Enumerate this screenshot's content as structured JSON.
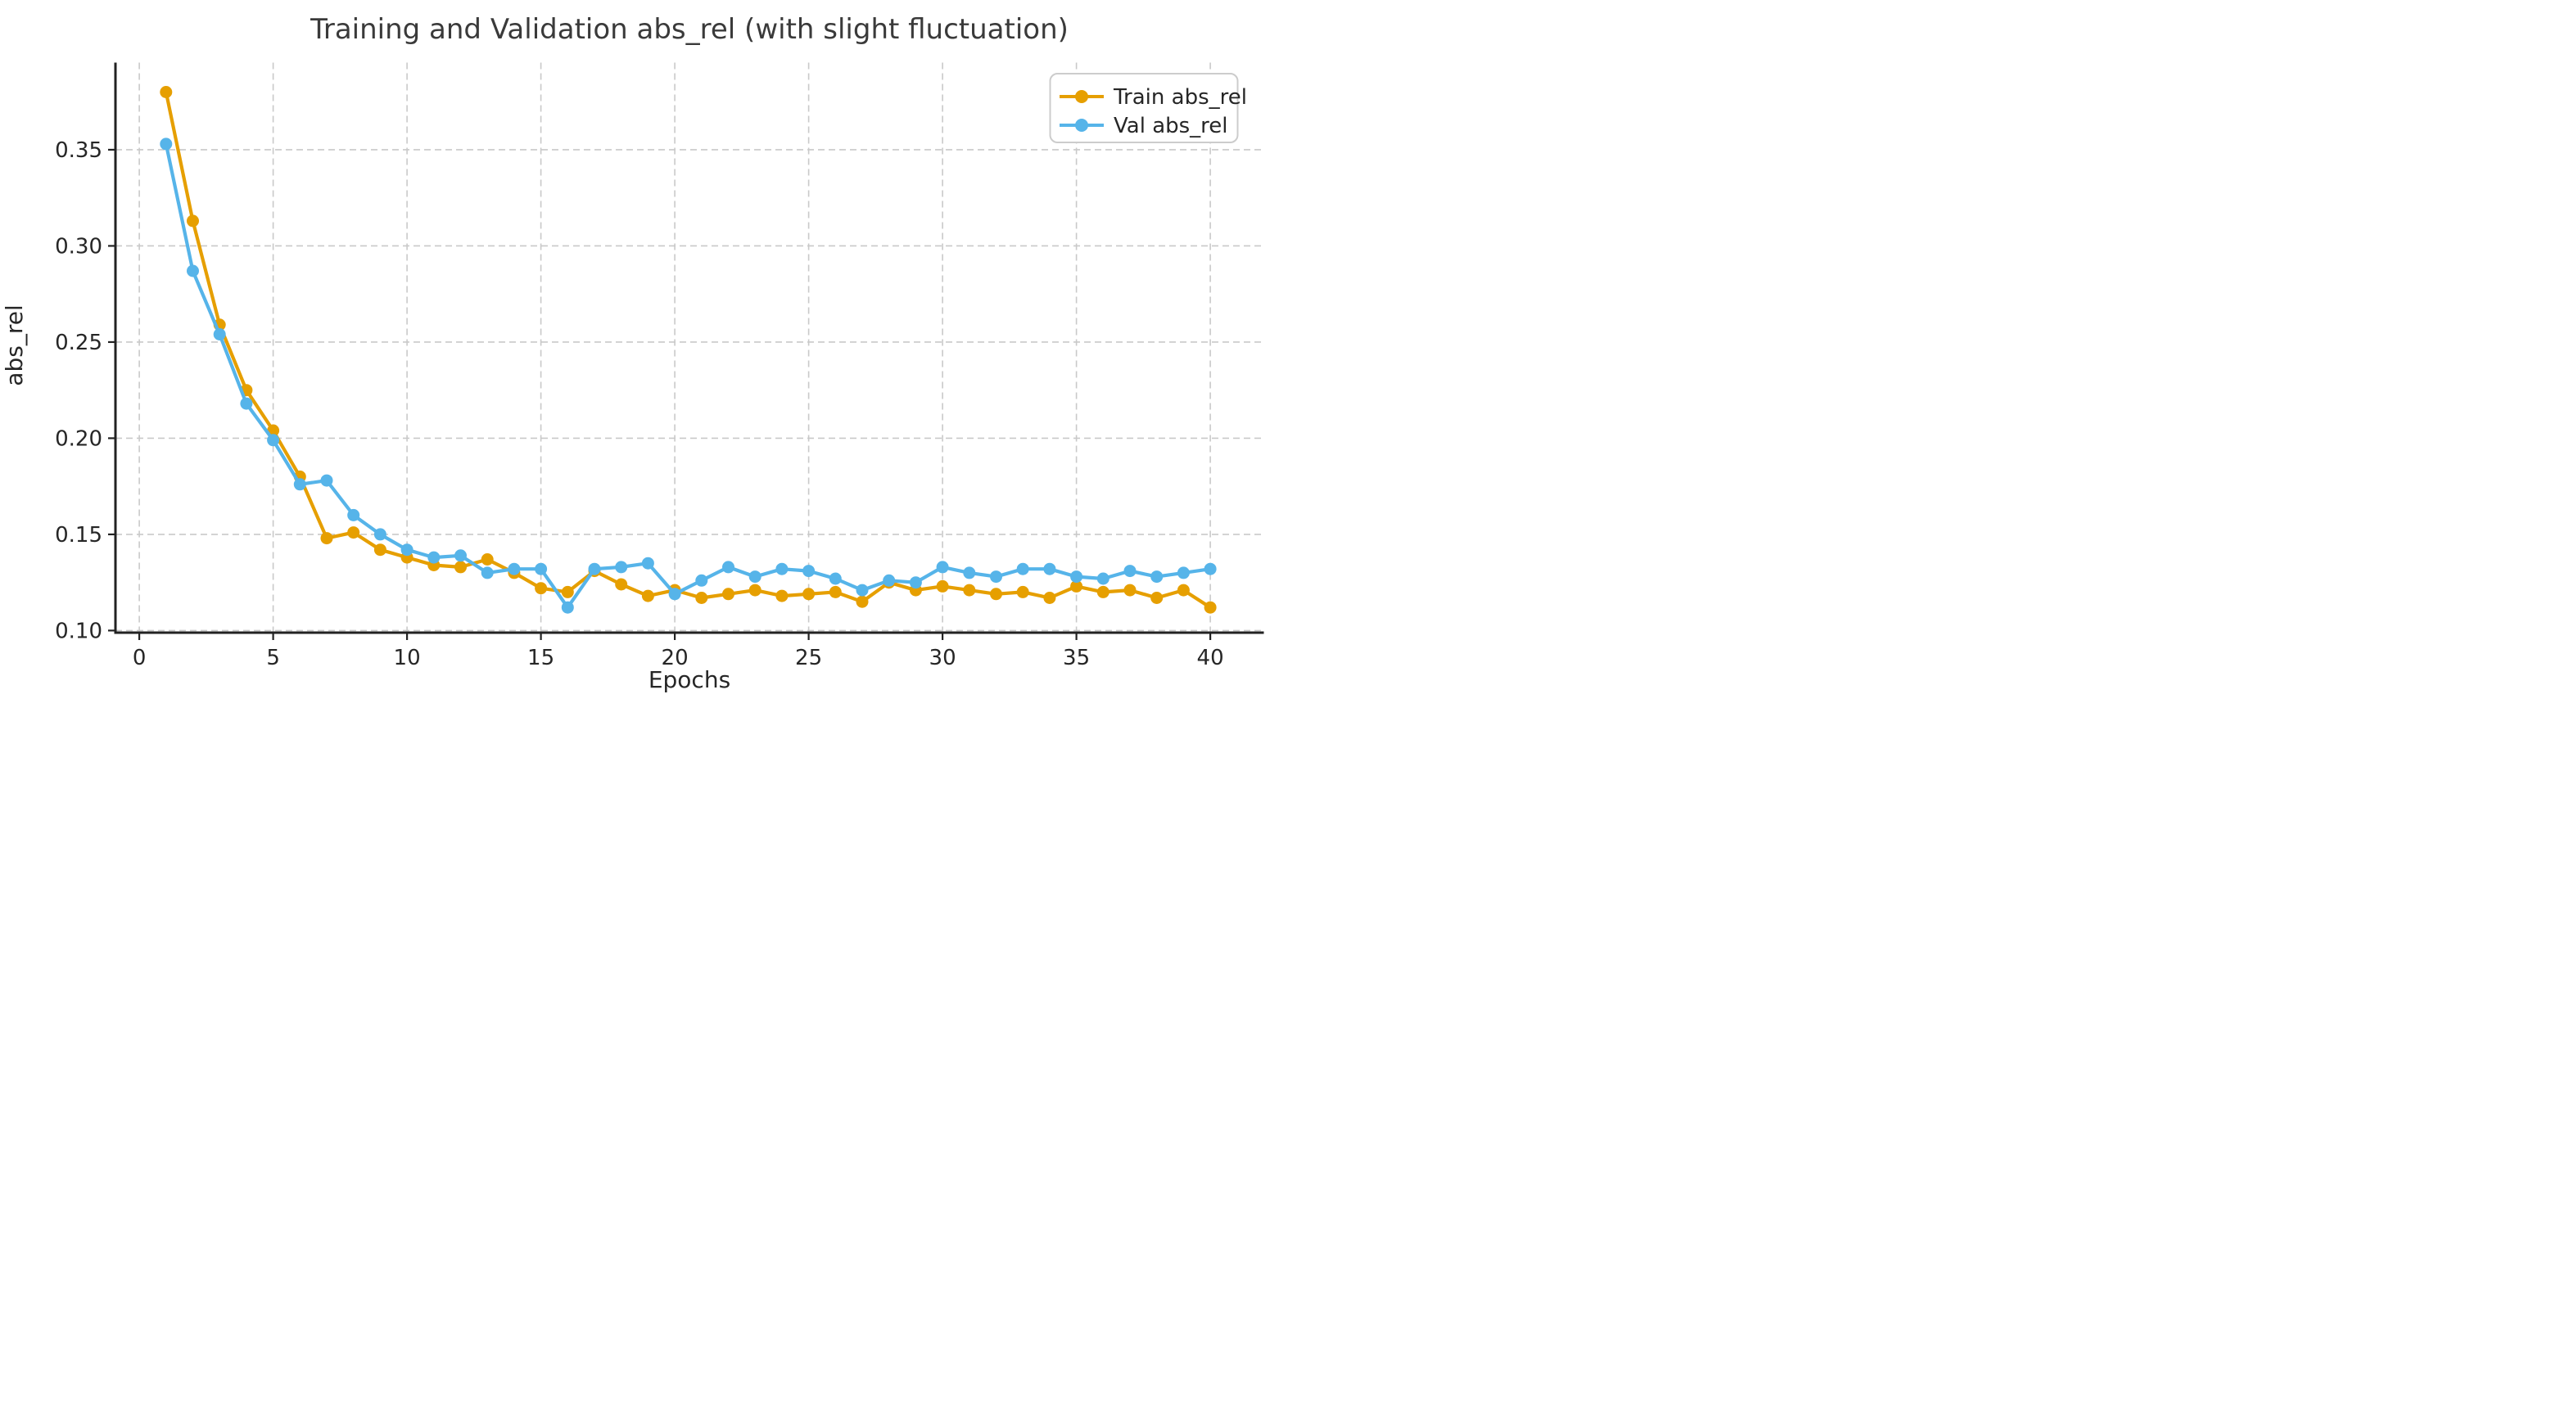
{
  "figure": {
    "background": "#ffffff"
  },
  "style": {
    "spine_color": "#222222",
    "tick_color": "#222222",
    "text_color": "#262626",
    "title_color": "#3a3a3a",
    "grid_color": "#c9c9c9",
    "legend_border_color": "#cccccc",
    "legend_background": "#ffffff"
  },
  "chart_data": {
    "type": "line",
    "title": "Training and Validation abs_rel (with slight fluctuation)",
    "xlabel": "Epochs",
    "ylabel": "abs_rel",
    "x": [
      1,
      2,
      3,
      4,
      5,
      6,
      7,
      8,
      9,
      10,
      11,
      12,
      13,
      14,
      15,
      16,
      17,
      18,
      19,
      20,
      21,
      22,
      23,
      24,
      25,
      26,
      27,
      28,
      29,
      30,
      31,
      32,
      33,
      34,
      35,
      36,
      37,
      38,
      39,
      40
    ],
    "series": [
      {
        "name": "Train abs_rel",
        "color": "#E69F00",
        "values": [
          0.38,
          0.313,
          0.259,
          0.225,
          0.204,
          0.18,
          0.148,
          0.151,
          0.142,
          0.138,
          0.134,
          0.133,
          0.137,
          0.13,
          0.122,
          0.12,
          0.131,
          0.124,
          0.118,
          0.121,
          0.117,
          0.119,
          0.121,
          0.118,
          0.119,
          0.12,
          0.115,
          0.125,
          0.121,
          0.123,
          0.121,
          0.119,
          0.12,
          0.117,
          0.123,
          0.12,
          0.121,
          0.117,
          0.121,
          0.112
        ]
      },
      {
        "name": "Val abs_rel",
        "color": "#56B4E9",
        "values": [
          0.353,
          0.287,
          0.254,
          0.218,
          0.199,
          0.176,
          0.178,
          0.16,
          0.15,
          0.142,
          0.138,
          0.139,
          0.13,
          0.132,
          0.132,
          0.112,
          0.132,
          0.133,
          0.135,
          0.119,
          0.126,
          0.133,
          0.128,
          0.132,
          0.131,
          0.127,
          0.121,
          0.126,
          0.125,
          0.133,
          0.13,
          0.128,
          0.132,
          0.132,
          0.128,
          0.127,
          0.131,
          0.128,
          0.13,
          0.132
        ]
      }
    ],
    "xlim": [
      -0.89,
      42.0
    ],
    "ylim": [
      0.0989,
      0.3953
    ],
    "xticks": [
      0,
      5,
      10,
      15,
      20,
      25,
      30,
      35,
      40
    ],
    "yticks": [
      0.1,
      0.15,
      0.2,
      0.25,
      0.3,
      0.35
    ],
    "grid": {
      "visible": true,
      "style": "dashed",
      "color": "#c9c9c9"
    },
    "legend": {
      "position": "upper right",
      "entries": [
        "Train abs_rel",
        "Val abs_rel"
      ]
    }
  }
}
